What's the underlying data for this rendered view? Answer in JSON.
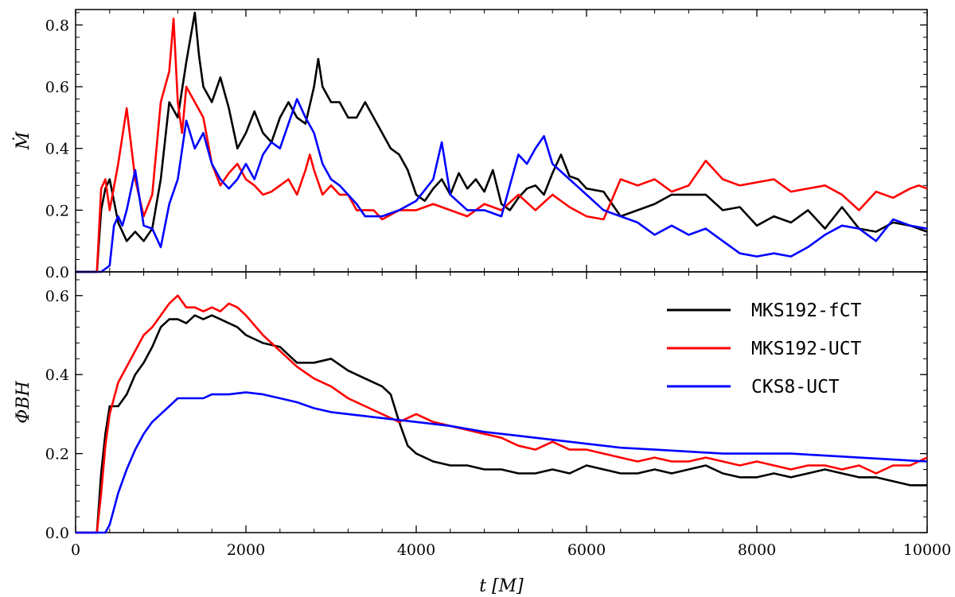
{
  "chart_data": [
    {
      "type": "line",
      "panel": "top",
      "ylabel": "Ṁ",
      "xlabel": "",
      "xlim": [
        0,
        10000
      ],
      "ylim": [
        0,
        0.85
      ],
      "yticks": [
        0.0,
        0.2,
        0.4,
        0.6,
        0.8
      ],
      "ytick_labels": [
        "0.0",
        "0.2",
        "0.4",
        "0.6",
        "0.8"
      ],
      "xticks": [
        0,
        2000,
        4000,
        6000,
        8000,
        10000
      ],
      "grid": false,
      "series": [
        {
          "name": "MKS192-fCT",
          "color": "#000000",
          "x": [
            0,
            250,
            300,
            350,
            400,
            500,
            600,
            700,
            800,
            900,
            1000,
            1100,
            1200,
            1300,
            1400,
            1450,
            1500,
            1600,
            1700,
            1800,
            1900,
            2000,
            2100,
            2200,
            2300,
            2400,
            2500,
            2600,
            2700,
            2800,
            2850,
            2900,
            3000,
            3100,
            3200,
            3300,
            3400,
            3500,
            3600,
            3700,
            3800,
            3900,
            4000,
            4100,
            4200,
            4300,
            4400,
            4500,
            4600,
            4700,
            4800,
            4900,
            5000,
            5100,
            5200,
            5300,
            5400,
            5500,
            5600,
            5700,
            5800,
            5900,
            6000,
            6200,
            6400,
            6600,
            6800,
            7000,
            7200,
            7400,
            7600,
            7800,
            8000,
            8200,
            8400,
            8600,
            8800,
            9000,
            9200,
            9400,
            9600,
            9800,
            10000
          ],
          "y": [
            0.0,
            0.0,
            0.2,
            0.27,
            0.3,
            0.16,
            0.1,
            0.13,
            0.1,
            0.14,
            0.3,
            0.55,
            0.5,
            0.68,
            0.84,
            0.7,
            0.6,
            0.55,
            0.63,
            0.53,
            0.4,
            0.45,
            0.52,
            0.45,
            0.42,
            0.5,
            0.55,
            0.5,
            0.48,
            0.6,
            0.69,
            0.6,
            0.55,
            0.55,
            0.5,
            0.5,
            0.55,
            0.5,
            0.45,
            0.4,
            0.38,
            0.33,
            0.25,
            0.23,
            0.27,
            0.3,
            0.25,
            0.32,
            0.27,
            0.3,
            0.26,
            0.33,
            0.22,
            0.2,
            0.24,
            0.27,
            0.28,
            0.25,
            0.32,
            0.38,
            0.31,
            0.3,
            0.27,
            0.26,
            0.18,
            0.2,
            0.22,
            0.25,
            0.25,
            0.25,
            0.2,
            0.21,
            0.15,
            0.18,
            0.16,
            0.2,
            0.14,
            0.21,
            0.14,
            0.13,
            0.16,
            0.15,
            0.13
          ]
        },
        {
          "name": "MKS192-UCT",
          "color": "#ff0000",
          "x": [
            0,
            250,
            300,
            350,
            400,
            500,
            600,
            700,
            800,
            900,
            1000,
            1100,
            1150,
            1200,
            1250,
            1300,
            1400,
            1500,
            1600,
            1700,
            1800,
            1900,
            2000,
            2100,
            2200,
            2300,
            2400,
            2500,
            2600,
            2700,
            2750,
            2800,
            2900,
            3000,
            3100,
            3200,
            3300,
            3400,
            3500,
            3600,
            3800,
            4000,
            4200,
            4400,
            4600,
            4800,
            5000,
            5200,
            5400,
            5600,
            5800,
            6000,
            6200,
            6400,
            6600,
            6800,
            7000,
            7200,
            7400,
            7600,
            7800,
            8000,
            8200,
            8400,
            8600,
            8800,
            9000,
            9200,
            9400,
            9600,
            9800,
            9900,
            10000
          ],
          "y": [
            0.0,
            0.0,
            0.27,
            0.3,
            0.2,
            0.35,
            0.53,
            0.3,
            0.18,
            0.25,
            0.55,
            0.65,
            0.82,
            0.55,
            0.45,
            0.6,
            0.55,
            0.5,
            0.35,
            0.28,
            0.32,
            0.35,
            0.3,
            0.28,
            0.25,
            0.26,
            0.28,
            0.3,
            0.25,
            0.33,
            0.38,
            0.33,
            0.25,
            0.28,
            0.25,
            0.25,
            0.2,
            0.2,
            0.2,
            0.17,
            0.2,
            0.2,
            0.22,
            0.2,
            0.18,
            0.22,
            0.2,
            0.25,
            0.2,
            0.25,
            0.21,
            0.18,
            0.17,
            0.3,
            0.28,
            0.3,
            0.26,
            0.28,
            0.36,
            0.3,
            0.28,
            0.29,
            0.3,
            0.26,
            0.27,
            0.28,
            0.25,
            0.2,
            0.26,
            0.24,
            0.27,
            0.28,
            0.27
          ]
        },
        {
          "name": "CKS8-UCT",
          "color": "#0000ff",
          "x": [
            0,
            300,
            400,
            450,
            500,
            550,
            600,
            700,
            800,
            900,
            1000,
            1100,
            1200,
            1300,
            1400,
            1500,
            1600,
            1700,
            1800,
            1900,
            2000,
            2100,
            2200,
            2300,
            2400,
            2500,
            2600,
            2700,
            2800,
            2900,
            3000,
            3100,
            3200,
            3300,
            3400,
            3600,
            3800,
            4000,
            4200,
            4300,
            4400,
            4600,
            4800,
            5000,
            5200,
            5300,
            5400,
            5500,
            5600,
            5800,
            6000,
            6200,
            6400,
            6600,
            6800,
            7000,
            7200,
            7400,
            7600,
            7800,
            8000,
            8200,
            8400,
            8600,
            8800,
            9000,
            9200,
            9400,
            9600,
            9800,
            10000
          ],
          "y": [
            0.0,
            0.0,
            0.02,
            0.15,
            0.18,
            0.15,
            0.2,
            0.33,
            0.15,
            0.14,
            0.08,
            0.22,
            0.3,
            0.49,
            0.4,
            0.45,
            0.35,
            0.3,
            0.27,
            0.3,
            0.35,
            0.3,
            0.38,
            0.42,
            0.4,
            0.48,
            0.56,
            0.5,
            0.45,
            0.35,
            0.3,
            0.28,
            0.25,
            0.22,
            0.18,
            0.18,
            0.2,
            0.23,
            0.3,
            0.42,
            0.25,
            0.2,
            0.2,
            0.18,
            0.38,
            0.35,
            0.4,
            0.44,
            0.35,
            0.3,
            0.25,
            0.2,
            0.18,
            0.16,
            0.12,
            0.15,
            0.12,
            0.14,
            0.1,
            0.06,
            0.05,
            0.06,
            0.05,
            0.08,
            0.12,
            0.15,
            0.14,
            0.1,
            0.17,
            0.15,
            0.14
          ]
        }
      ]
    },
    {
      "type": "line",
      "panel": "bottom",
      "ylabel": "ΦBH",
      "xlabel": "t [M]",
      "xlim": [
        0,
        10000
      ],
      "ylim": [
        0,
        0.66
      ],
      "yticks": [
        0.0,
        0.2,
        0.4,
        0.6
      ],
      "ytick_labels": [
        "0.0",
        "0.2",
        "0.4",
        "0.6"
      ],
      "xticks": [
        0,
        2000,
        4000,
        6000,
        8000,
        10000
      ],
      "xtick_labels": [
        "0",
        "2000",
        "4000",
        "6000",
        "8000",
        "10000"
      ],
      "grid": false,
      "legend_position": "top-right",
      "series": [
        {
          "name": "MKS192-fCT",
          "color": "#000000",
          "x": [
            0,
            250,
            300,
            350,
            400,
            500,
            600,
            700,
            800,
            900,
            1000,
            1100,
            1200,
            1300,
            1400,
            1500,
            1600,
            1700,
            1800,
            1900,
            2000,
            2200,
            2400,
            2600,
            2800,
            3000,
            3200,
            3400,
            3600,
            3700,
            3800,
            3900,
            4000,
            4200,
            4400,
            4600,
            4800,
            5000,
            5200,
            5400,
            5600,
            5800,
            6000,
            6200,
            6400,
            6600,
            6800,
            7000,
            7200,
            7400,
            7600,
            7800,
            8000,
            8200,
            8400,
            8600,
            8800,
            9000,
            9200,
            9400,
            9600,
            9800,
            10000
          ],
          "y": [
            0.0,
            0.0,
            0.15,
            0.25,
            0.32,
            0.32,
            0.35,
            0.4,
            0.43,
            0.47,
            0.52,
            0.54,
            0.54,
            0.53,
            0.55,
            0.54,
            0.55,
            0.54,
            0.53,
            0.52,
            0.5,
            0.48,
            0.47,
            0.43,
            0.43,
            0.44,
            0.41,
            0.39,
            0.37,
            0.35,
            0.28,
            0.22,
            0.2,
            0.18,
            0.17,
            0.17,
            0.16,
            0.16,
            0.15,
            0.15,
            0.16,
            0.15,
            0.17,
            0.16,
            0.15,
            0.15,
            0.16,
            0.15,
            0.16,
            0.17,
            0.15,
            0.14,
            0.14,
            0.15,
            0.14,
            0.15,
            0.16,
            0.15,
            0.14,
            0.14,
            0.13,
            0.12,
            0.12
          ]
        },
        {
          "name": "MKS192-UCT",
          "color": "#ff0000",
          "x": [
            0,
            250,
            300,
            350,
            400,
            500,
            600,
            700,
            800,
            900,
            1000,
            1100,
            1200,
            1300,
            1400,
            1500,
            1600,
            1700,
            1800,
            1900,
            2000,
            2200,
            2400,
            2600,
            2800,
            3000,
            3200,
            3400,
            3600,
            3800,
            4000,
            4200,
            4400,
            4600,
            4800,
            5000,
            5200,
            5400,
            5600,
            5800,
            6000,
            6200,
            6400,
            6600,
            6800,
            7000,
            7200,
            7400,
            7600,
            7800,
            8000,
            8200,
            8400,
            8600,
            8800,
            9000,
            9200,
            9400,
            9600,
            9800,
            10000
          ],
          "y": [
            0.0,
            0.0,
            0.1,
            0.22,
            0.3,
            0.38,
            0.42,
            0.46,
            0.5,
            0.52,
            0.55,
            0.58,
            0.6,
            0.57,
            0.57,
            0.56,
            0.57,
            0.56,
            0.58,
            0.57,
            0.55,
            0.5,
            0.46,
            0.42,
            0.39,
            0.37,
            0.34,
            0.32,
            0.3,
            0.28,
            0.3,
            0.28,
            0.27,
            0.26,
            0.25,
            0.24,
            0.22,
            0.21,
            0.23,
            0.21,
            0.21,
            0.2,
            0.19,
            0.18,
            0.19,
            0.18,
            0.18,
            0.19,
            0.18,
            0.17,
            0.18,
            0.17,
            0.16,
            0.17,
            0.17,
            0.16,
            0.17,
            0.15,
            0.17,
            0.17,
            0.19
          ]
        },
        {
          "name": "CKS8-UCT",
          "color": "#0000ff",
          "x": [
            0,
            350,
            400,
            450,
            500,
            600,
            700,
            800,
            900,
            1000,
            1100,
            1200,
            1300,
            1400,
            1500,
            1600,
            1700,
            1800,
            2000,
            2200,
            2400,
            2600,
            2800,
            3000,
            3200,
            3400,
            3600,
            3800,
            4000,
            4400,
            4800,
            5200,
            5600,
            6000,
            6400,
            6800,
            7200,
            7600,
            8000,
            8400,
            8800,
            9200,
            9600,
            10000
          ],
          "y": [
            0.0,
            0.0,
            0.02,
            0.06,
            0.1,
            0.16,
            0.21,
            0.25,
            0.28,
            0.3,
            0.32,
            0.34,
            0.34,
            0.34,
            0.34,
            0.35,
            0.35,
            0.35,
            0.355,
            0.35,
            0.34,
            0.33,
            0.315,
            0.305,
            0.3,
            0.295,
            0.29,
            0.285,
            0.28,
            0.27,
            0.255,
            0.245,
            0.235,
            0.225,
            0.215,
            0.21,
            0.205,
            0.2,
            0.2,
            0.2,
            0.195,
            0.19,
            0.185,
            0.18
          ]
        }
      ]
    }
  ]
}
